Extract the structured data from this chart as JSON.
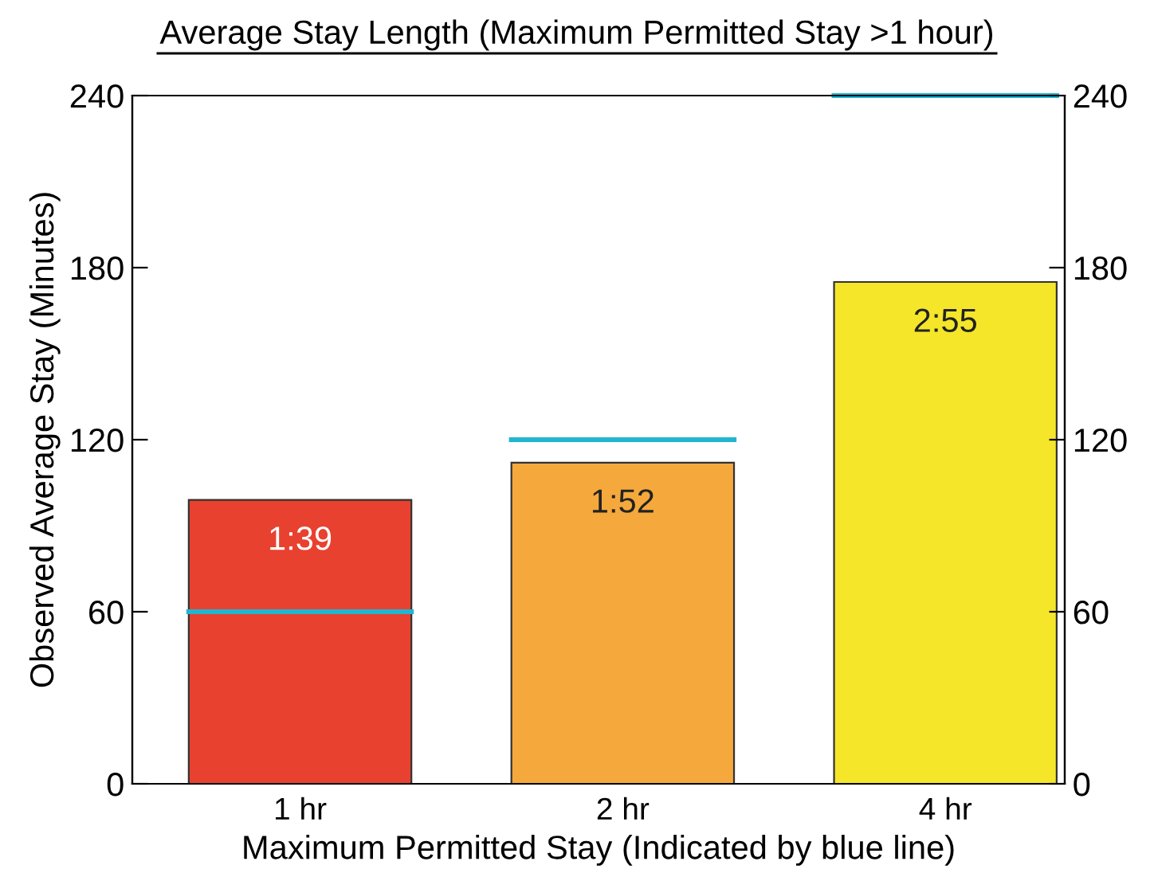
{
  "chart_data": {
    "type": "bar",
    "title": "Average Stay Length (Maximum Permitted Stay >1 hour)",
    "xlabel": "Maximum Permitted Stay (Indicated by blue line)",
    "ylabel": "Observed Average Stay (Minutes)",
    "categories": [
      "1 hr",
      "2 hr",
      "4 hr"
    ],
    "series": [
      {
        "colors": [
          "#e8412f",
          "#f5a93c",
          "#f5e629"
        ],
        "values": [
          99,
          112,
          175
        ],
        "value_labels": [
          "1:39",
          "1:52",
          "2:55"
        ]
      }
    ],
    "ref_lines": [
      {
        "axis": "y",
        "value": 60,
        "color": "#22b5d0"
      },
      {
        "axis": "y",
        "value": 120,
        "color": "#22b5d0"
      },
      {
        "axis": "y",
        "value": 240,
        "color": "#22b5d0"
      }
    ],
    "ylim": [
      0,
      240
    ],
    "yticks": [
      0,
      60,
      120,
      180,
      240
    ],
    "y2lim": [
      0,
      240
    ],
    "y2ticks": [
      0,
      60,
      120,
      180,
      240
    ],
    "grid": false
  }
}
